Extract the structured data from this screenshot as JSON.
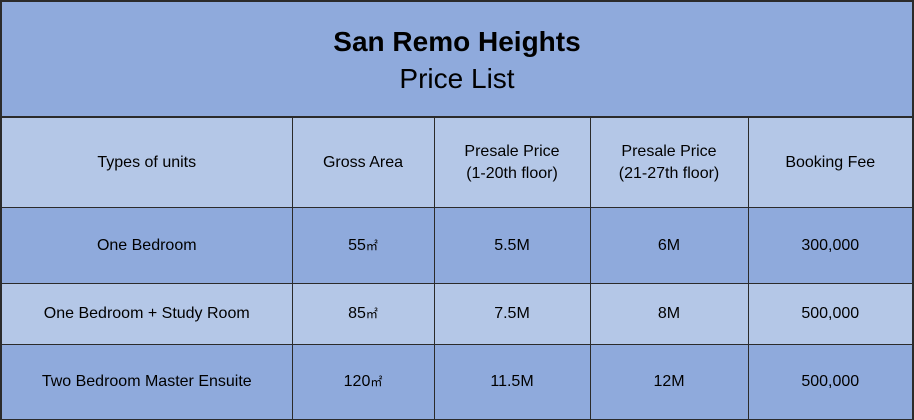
{
  "title": "San Remo Heights",
  "subtitle": "Price List",
  "headers": {
    "type": "Types of units",
    "area": "Gross Area",
    "presale_low_line1": "Presale Price",
    "presale_low_line2": "(1-20th floor)",
    "presale_high_line1": "Presale Price",
    "presale_high_line2": "(21-27th floor)",
    "booking": "Booking Fee"
  },
  "area_unit": "㎡",
  "rows": [
    {
      "type": "One Bedroom",
      "area": "55",
      "presale_low": "5.5M",
      "presale_high": "6M",
      "booking": "300,000"
    },
    {
      "type": "One Bedroom + Study Room",
      "area": "85",
      "presale_low": "7.5M",
      "presale_high": "8M",
      "booking": "500,000"
    },
    {
      "type": "Two Bedroom Master Ensuite",
      "area": "120",
      "presale_low": "11.5M",
      "presale_high": "12M",
      "booking": "500,000"
    }
  ],
  "colors": {
    "dark_fill": "#8faadc",
    "light_fill": "#b4c7e7",
    "border": "#2b2b2b"
  }
}
